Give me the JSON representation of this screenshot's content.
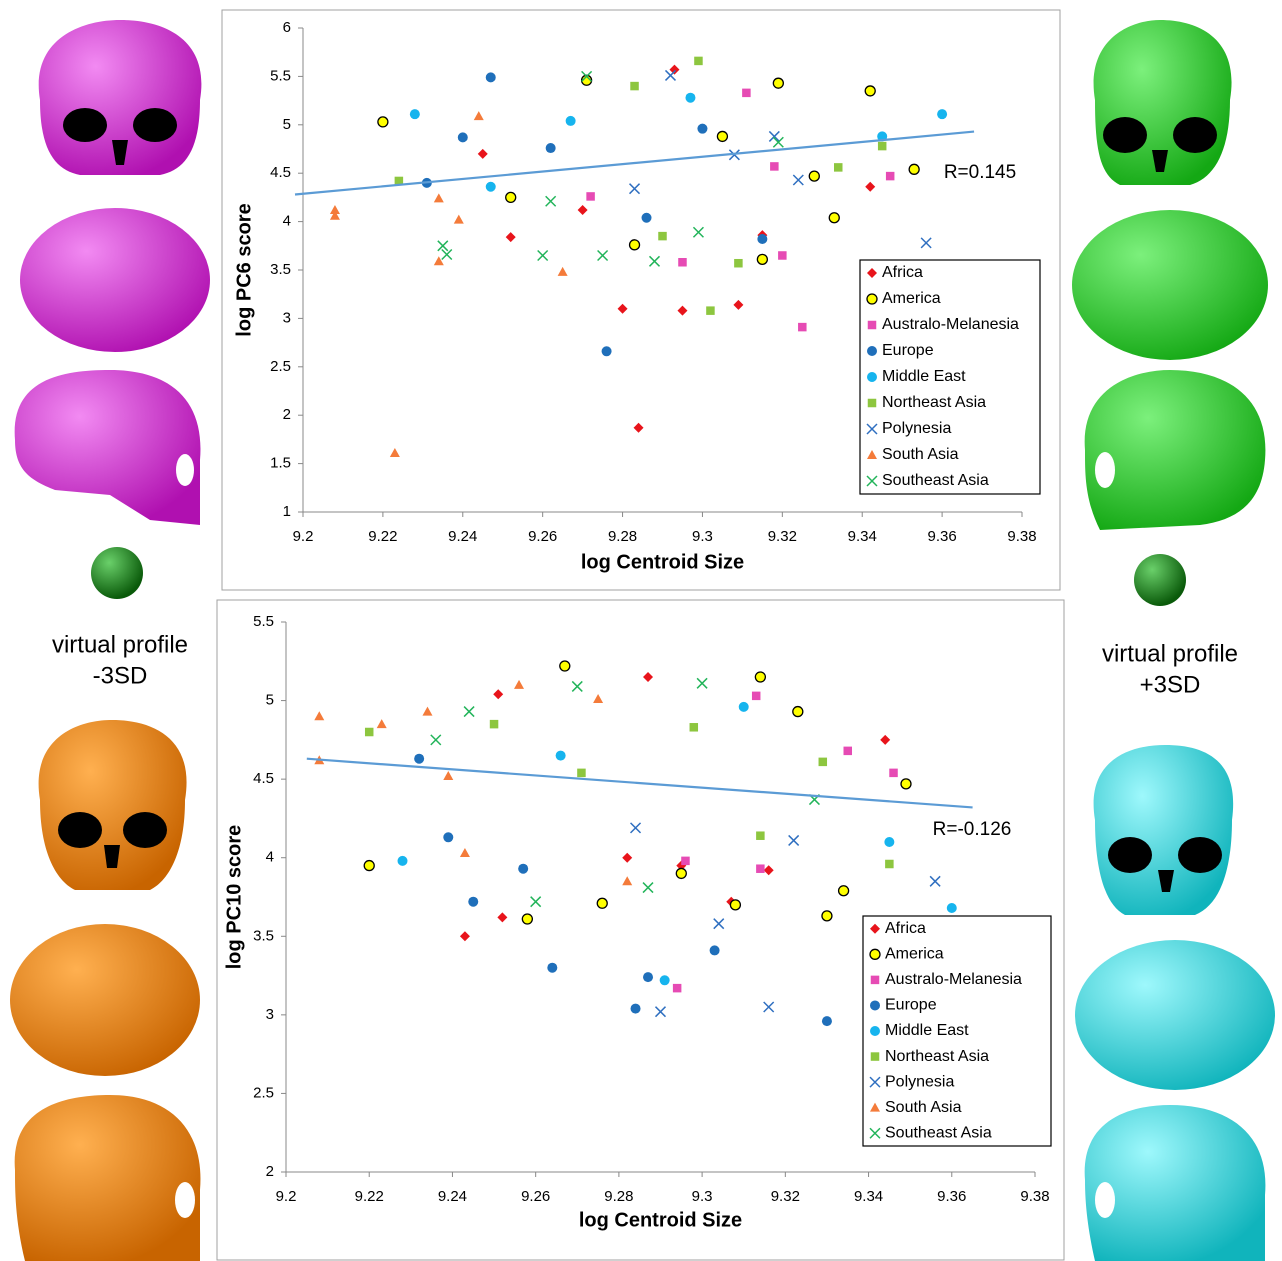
{
  "chart_data": [
    {
      "type": "scatter",
      "x_label": "log Centroid Size",
      "y_label": "log PC6 score",
      "annotation": "R=0.145",
      "xlim": [
        9.2,
        9.38
      ],
      "xticks": [
        9.2,
        9.22,
        9.24,
        9.26,
        9.28,
        9.3,
        9.32,
        9.34,
        9.36,
        9.38
      ],
      "ylim": [
        1,
        6
      ],
      "yticks": [
        1,
        1.5,
        2,
        2.5,
        3,
        3.5,
        4,
        4.5,
        5,
        5.5,
        6
      ],
      "legend": "right",
      "grid": false,
      "trendline": {
        "color": "#5b9bd5",
        "x": [
          9.198,
          9.368
        ],
        "y": [
          4.28,
          4.93
        ]
      },
      "series": [
        {
          "name": "Africa",
          "marker": "diamond",
          "color": "#e8141b",
          "x": [
            9.293,
            9.252,
            9.28,
            9.284,
            9.295,
            9.309,
            9.342,
            9.245,
            9.27,
            9.315
          ],
          "values": [
            5.57,
            3.84,
            3.1,
            1.87,
            3.08,
            3.14,
            4.36,
            4.7,
            4.12,
            3.86
          ]
        },
        {
          "name": "America",
          "marker": "circle",
          "color": "#ffff00",
          "edgecolor": "#000000",
          "x": [
            9.22,
            9.271,
            9.319,
            9.342,
            9.353,
            9.333,
            9.315,
            9.252,
            9.283,
            9.305,
            9.328
          ],
          "values": [
            5.03,
            5.46,
            5.43,
            5.35,
            4.54,
            4.04,
            3.61,
            4.25,
            3.76,
            4.88,
            4.47
          ]
        },
        {
          "name": "Australo-Melanesia",
          "marker": "square",
          "color": "#e64bb4",
          "x": [
            9.325,
            9.32,
            9.295,
            9.347,
            9.311,
            9.272,
            9.318
          ],
          "values": [
            2.91,
            3.65,
            3.58,
            4.47,
            5.33,
            4.26,
            4.57
          ]
        },
        {
          "name": "Europe",
          "marker": "circle",
          "color": "#1f6fba",
          "x": [
            9.247,
            9.276,
            9.231,
            9.315,
            9.286,
            9.262,
            9.3,
            9.24
          ],
          "values": [
            5.49,
            2.66,
            4.4,
            3.82,
            4.04,
            4.76,
            4.96,
            4.87
          ]
        },
        {
          "name": "Middle East",
          "marker": "circle",
          "color": "#16b4ee",
          "x": [
            9.228,
            9.36,
            9.247,
            9.345,
            9.297,
            9.267
          ],
          "values": [
            5.11,
            5.11,
            4.36,
            4.88,
            5.28,
            5.04
          ]
        },
        {
          "name": "Northeast Asia",
          "marker": "square",
          "color": "#8dc63f",
          "x": [
            9.224,
            9.299,
            9.302,
            9.309,
            9.29,
            9.334,
            9.345,
            9.283
          ],
          "values": [
            4.42,
            5.66,
            3.08,
            3.57,
            3.85,
            4.56,
            4.78,
            5.4
          ]
        },
        {
          "name": "Polynesia",
          "marker": "x",
          "color": "#2f6fc0",
          "x": [
            9.356,
            9.324,
            9.292,
            9.283,
            9.318,
            9.308
          ],
          "values": [
            3.78,
            4.43,
            5.51,
            4.34,
            4.88,
            4.69
          ]
        },
        {
          "name": "South Asia",
          "marker": "triangle",
          "color": "#f47b3a",
          "x": [
            9.208,
            9.208,
            9.223,
            9.234,
            9.239,
            9.234,
            9.265,
            9.244
          ],
          "values": [
            4.12,
            4.06,
            1.61,
            3.59,
            4.02,
            4.24,
            3.48,
            5.09
          ]
        },
        {
          "name": "Southeast Asia",
          "marker": "x",
          "color": "#22b45a",
          "x": [
            9.235,
            9.236,
            9.26,
            9.275,
            9.288,
            9.299,
            9.262,
            9.271,
            9.319
          ],
          "values": [
            3.75,
            3.66,
            3.65,
            3.65,
            3.59,
            3.89,
            4.21,
            5.5,
            4.82
          ]
        }
      ]
    },
    {
      "type": "scatter",
      "x_label": "log Centroid Size",
      "y_label": "log PC10 score",
      "annotation": "R=-0.126",
      "xlim": [
        9.2,
        9.38
      ],
      "xticks": [
        9.2,
        9.22,
        9.24,
        9.26,
        9.28,
        9.3,
        9.32,
        9.34,
        9.36,
        9.38
      ],
      "ylim": [
        2,
        5.5
      ],
      "yticks": [
        2,
        2.5,
        3,
        3.5,
        4,
        4.5,
        5,
        5.5
      ],
      "legend": "right",
      "grid": false,
      "trendline": {
        "color": "#5b9bd5",
        "x": [
          9.205,
          9.365
        ],
        "y": [
          4.63,
          4.32
        ]
      },
      "series": [
        {
          "name": "Africa",
          "marker": "diamond",
          "color": "#e8141b",
          "x": [
            9.243,
            9.252,
            9.287,
            9.316,
            9.307,
            9.251,
            9.344,
            9.295,
            9.282
          ],
          "values": [
            3.5,
            3.62,
            5.15,
            3.92,
            3.72,
            5.04,
            4.75,
            3.95,
            4.0
          ]
        },
        {
          "name": "America",
          "marker": "circle",
          "color": "#ffff00",
          "edgecolor": "#000000",
          "x": [
            9.22,
            9.258,
            9.276,
            9.308,
            9.33,
            9.334,
            9.267,
            9.314,
            9.349,
            9.295,
            9.323
          ],
          "values": [
            3.95,
            3.61,
            3.71,
            3.7,
            3.63,
            3.79,
            5.22,
            5.15,
            4.47,
            3.9,
            4.93
          ]
        },
        {
          "name": "Australo-Melanesia",
          "marker": "square",
          "color": "#e64bb4",
          "x": [
            9.294,
            9.313,
            9.346,
            9.335,
            9.296,
            9.314
          ],
          "values": [
            3.17,
            5.03,
            4.54,
            4.68,
            3.98,
            3.93
          ]
        },
        {
          "name": "Europe",
          "marker": "circle",
          "color": "#1f6fba",
          "x": [
            9.284,
            9.264,
            9.33,
            9.303,
            9.287,
            9.245,
            9.239,
            9.257,
            9.232
          ],
          "values": [
            3.04,
            3.3,
            2.96,
            3.41,
            3.24,
            3.72,
            4.13,
            3.93,
            4.63
          ]
        },
        {
          "name": "Middle East",
          "marker": "circle",
          "color": "#16b4ee",
          "x": [
            9.228,
            9.36,
            9.291,
            9.345,
            9.31,
            9.266
          ],
          "values": [
            3.98,
            3.68,
            3.22,
            4.1,
            4.96,
            4.65
          ]
        },
        {
          "name": "Northeast Asia",
          "marker": "square",
          "color": "#8dc63f",
          "x": [
            9.22,
            9.345,
            9.25,
            9.314,
            9.329,
            9.298,
            9.271
          ],
          "values": [
            4.8,
            3.96,
            4.85,
            4.14,
            4.61,
            4.83,
            4.54
          ]
        },
        {
          "name": "Polynesia",
          "marker": "x",
          "color": "#2f6fc0",
          "x": [
            9.29,
            9.316,
            9.356,
            9.304,
            9.284,
            9.322
          ],
          "values": [
            3.02,
            3.05,
            3.85,
            3.58,
            4.19,
            4.11
          ]
        },
        {
          "name": "South Asia",
          "marker": "triangle",
          "color": "#f47b3a",
          "x": [
            9.208,
            9.208,
            9.223,
            9.234,
            9.239,
            9.243,
            9.256,
            9.282,
            9.275
          ],
          "values": [
            4.9,
            4.62,
            4.85,
            4.93,
            4.52,
            4.03,
            5.1,
            3.85,
            5.01
          ]
        },
        {
          "name": "Southeast Asia",
          "marker": "x",
          "color": "#22b45a",
          "x": [
            9.236,
            9.244,
            9.26,
            9.287,
            9.3,
            9.27,
            9.327
          ],
          "values": [
            4.75,
            4.93,
            3.72,
            3.81,
            5.11,
            5.09,
            4.37
          ]
        }
      ]
    }
  ],
  "profiles": {
    "left": [
      "virtual profile",
      "-3SD"
    ],
    "right": [
      "virtual profile",
      "+3SD"
    ]
  }
}
